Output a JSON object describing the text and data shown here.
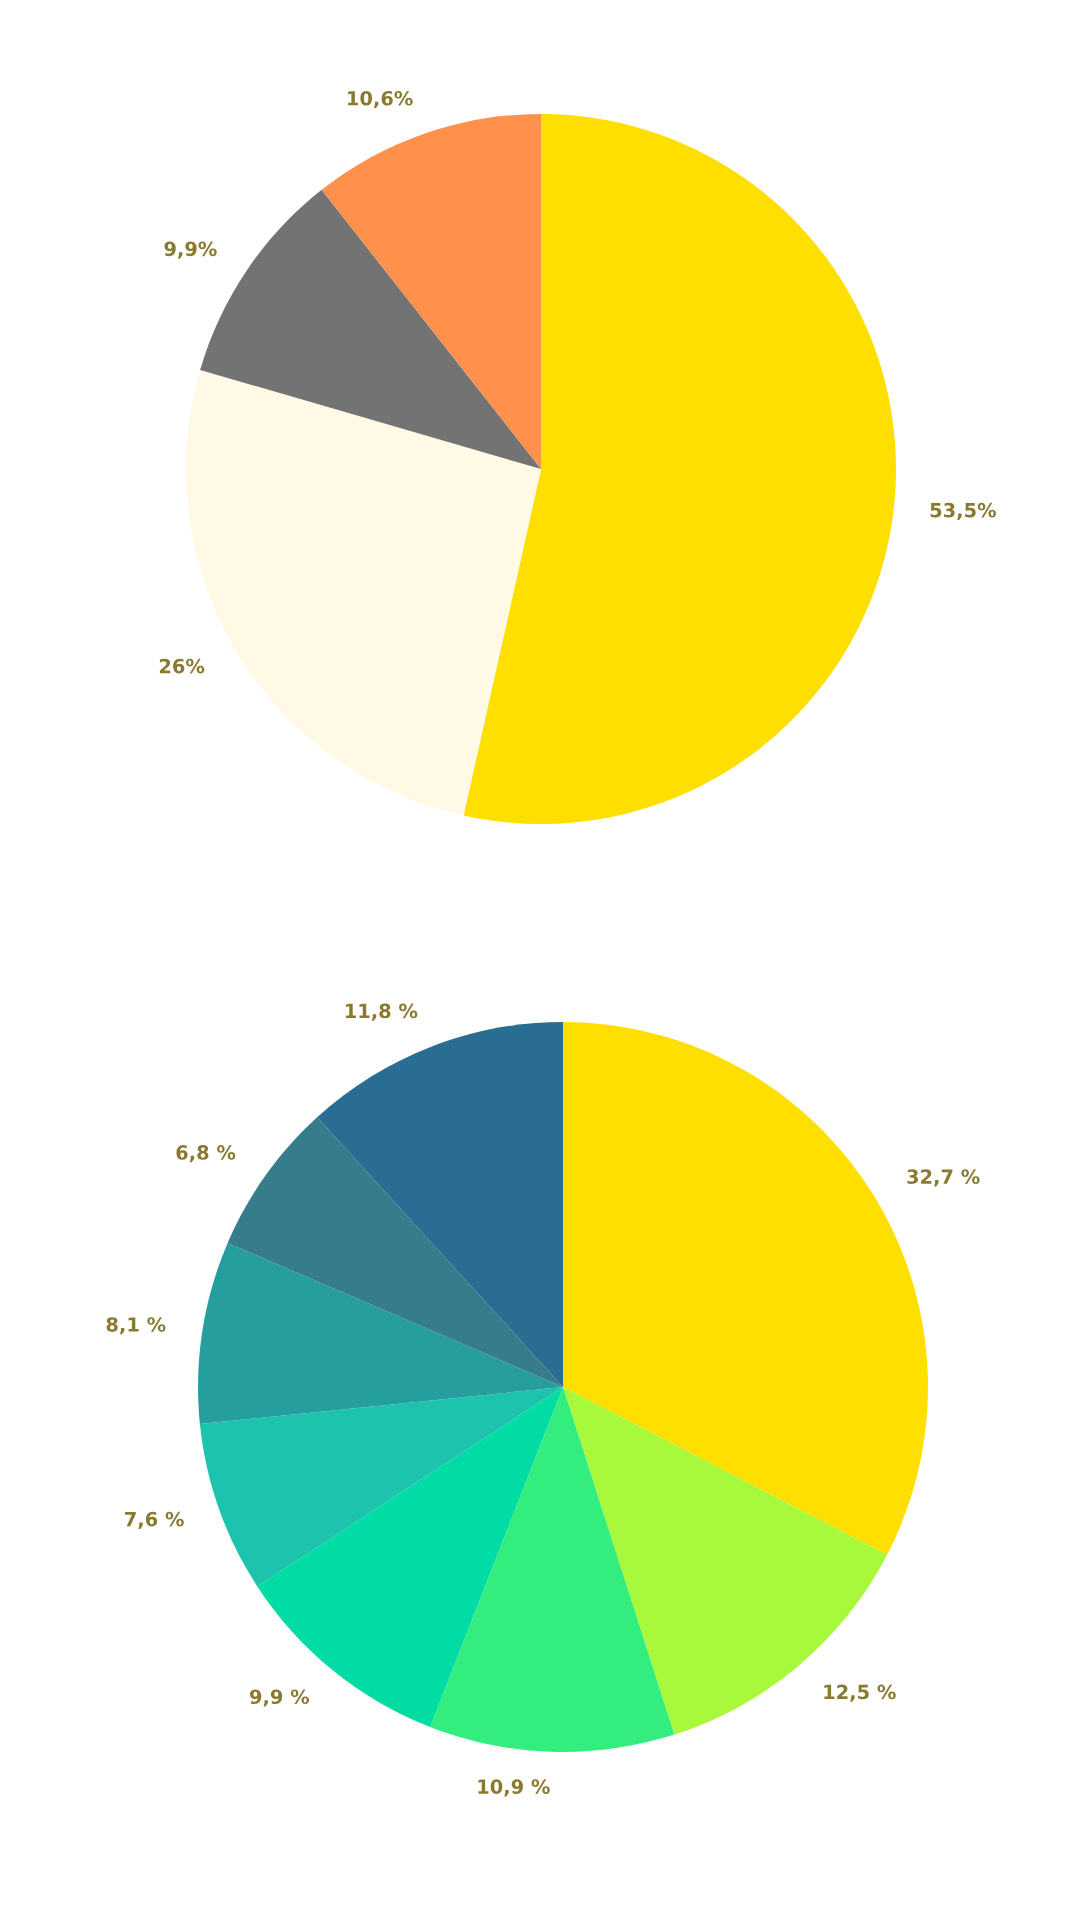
{
  "chart_data": [
    {
      "type": "pie",
      "categories": [
        null,
        null,
        null,
        null
      ],
      "values": [
        53.5,
        26,
        9.9,
        10.6
      ],
      "value_labels": [
        "53,5%",
        "26%",
        "9,9%",
        "10,6%"
      ],
      "colors": [
        "#ffdf00",
        "#fff9e6",
        "#737373",
        "#ff914d"
      ]
    },
    {
      "type": "pie",
      "categories": [
        null,
        null,
        null,
        null,
        null,
        null,
        null,
        null
      ],
      "values": [
        32.7,
        12.5,
        10.9,
        9.9,
        7.6,
        8.1,
        6.8,
        11.8
      ],
      "value_labels": [
        "32,7 %",
        "12,5 %",
        "10,9 %",
        "9,9 %",
        "7,6 %",
        "8,1 %",
        "6,8 %",
        "11,8 %"
      ],
      "colors": [
        "#ffdf00",
        "#a8f83c",
        "#33ee7e",
        "#00dca4",
        "#1dc3ad",
        "#269e9e",
        "#377c8a",
        "#2a6d92"
      ]
    }
  ]
}
